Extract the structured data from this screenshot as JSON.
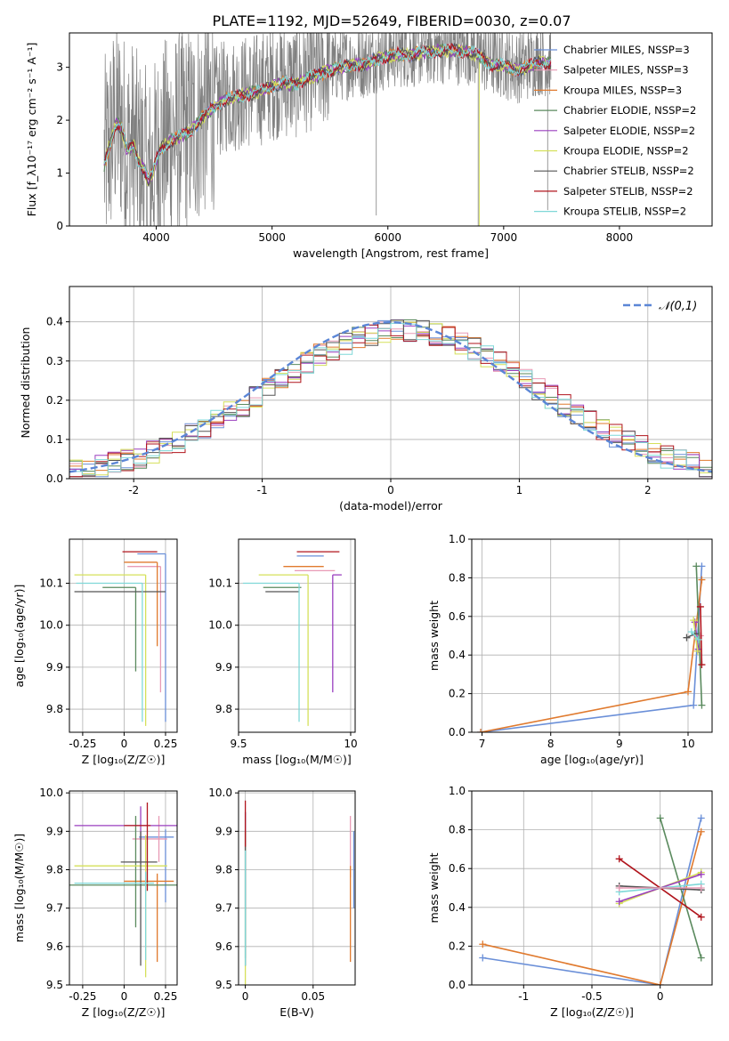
{
  "title": "PLATE=1192, MJD=52649, FIBERID=0030, z=0.07",
  "colors": {
    "chabrier_miles": "#6a8fd8",
    "salpeter_miles": "#e89ab5",
    "kroupa_miles": "#e07a2e",
    "chabrier_elodie": "#5a8a5e",
    "salpeter_elodie": "#9a3fbf",
    "kroupa_elodie": "#d5e05a",
    "chabrier_stelib": "#555555",
    "salpeter_stelib": "#b0141c",
    "kroupa_stelib": "#7fd8d8",
    "data": "#808080",
    "gaussian": "#5b86d6"
  },
  "chart_data": [
    {
      "id": "spectrum",
      "type": "line",
      "xlabel": "wavelength [Angstrom, rest frame]",
      "ylabel": "Flux [f_λ10⁻¹⁷ erg cm⁻² s⁻¹ A⁻¹]",
      "xlim": [
        3250,
        8800
      ],
      "ylim": [
        0,
        3.65
      ],
      "xticks": [
        4000,
        5000,
        6000,
        7000,
        8000
      ],
      "yticks": [
        0,
        1,
        2,
        3
      ],
      "grid": false,
      "legend_position": "right",
      "x_range_data": [
        3550,
        7410
      ],
      "continuum": [
        [
          3550,
          1.2
        ],
        [
          3600,
          1.6
        ],
        [
          3650,
          2.0
        ],
        [
          3700,
          1.9
        ],
        [
          3750,
          1.45
        ],
        [
          3800,
          1.6
        ],
        [
          3850,
          1.25
        ],
        [
          3900,
          1.1
        ],
        [
          3930,
          0.9
        ],
        [
          3970,
          1.05
        ],
        [
          4000,
          1.3
        ],
        [
          4050,
          1.55
        ],
        [
          4100,
          1.62
        ],
        [
          4200,
          1.75
        ],
        [
          4300,
          1.85
        ],
        [
          4400,
          2.1
        ],
        [
          4500,
          2.3
        ],
        [
          4600,
          2.45
        ],
        [
          4700,
          2.5
        ],
        [
          4800,
          2.55
        ],
        [
          4900,
          2.6
        ],
        [
          5000,
          2.7
        ],
        [
          5100,
          2.75
        ],
        [
          5200,
          2.72
        ],
        [
          5300,
          2.85
        ],
        [
          5400,
          2.9
        ],
        [
          5500,
          3.0
        ],
        [
          5600,
          3.05
        ],
        [
          5700,
          3.1
        ],
        [
          5800,
          3.1
        ],
        [
          5900,
          3.2
        ],
        [
          6000,
          3.25
        ],
        [
          6100,
          3.3
        ],
        [
          6200,
          3.3
        ],
        [
          6300,
          3.33
        ],
        [
          6400,
          3.35
        ],
        [
          6500,
          3.37
        ],
        [
          6600,
          3.35
        ],
        [
          6700,
          3.35
        ],
        [
          6800,
          3.25
        ],
        [
          6900,
          3.1
        ],
        [
          7000,
          3.1
        ],
        [
          7100,
          3.0
        ],
        [
          7200,
          3.05
        ],
        [
          7300,
          3.15
        ],
        [
          7410,
          3.12
        ]
      ],
      "models": [
        {
          "name": "Chabrier MILES, N_SSP=3",
          "color_key": "chabrier_miles"
        },
        {
          "name": "Salpeter MILES, N_SSP=3",
          "color_key": "salpeter_miles"
        },
        {
          "name": "Kroupa MILES, N_SSP=3",
          "color_key": "kroupa_miles"
        },
        {
          "name": "Chabrier ELODIE, N_SSP=2",
          "color_key": "chabrier_elodie"
        },
        {
          "name": "Salpeter ELODIE, N_SSP=2",
          "color_key": "salpeter_elodie"
        },
        {
          "name": "Kroupa ELODIE, N_SSP=2",
          "color_key": "kroupa_elodie"
        },
        {
          "name": "Chabrier STELIB, N_SSP=2",
          "color_key": "chabrier_stelib"
        },
        {
          "name": "Salpeter STELIB, N_SSP=2",
          "color_key": "salpeter_stelib"
        },
        {
          "name": "Kroupa STELIB, N_SSP=2",
          "color_key": "kroupa_stelib"
        }
      ]
    },
    {
      "id": "residuals",
      "type": "line",
      "xlabel": "(data-model)/error",
      "ylabel": "Normed distribution",
      "xlim": [
        -2.5,
        2.5
      ],
      "ylim": [
        0,
        0.49
      ],
      "xticks": [
        -2,
        -1,
        0,
        1,
        2
      ],
      "yticks": [
        0.0,
        0.1,
        0.2,
        0.3,
        0.4
      ],
      "grid": true,
      "legend_position": "top-right",
      "gaussian_label": "𝒩(0,1)",
      "bin_width": 0.1
    },
    {
      "id": "age_vs_Z",
      "type": "scatter",
      "xlabel": "Z [log₁₀(Z/Z☉)]",
      "ylabel": "age  [log₁₀(age/yr)]",
      "xlim": [
        -0.33,
        0.32
      ],
      "ylim": [
        9.745,
        10.205
      ],
      "xticks": [
        -0.25,
        0.0,
        0.25
      ],
      "yticks": [
        9.8,
        9.9,
        10.0,
        10.1
      ],
      "grid": true,
      "errorbars": [
        {
          "color_key": "chabrier_miles",
          "x": 0.25,
          "y": 10.17,
          "xerr": [
            0.17,
            0.0
          ],
          "yerr": [
            0.4,
            0.0
          ]
        },
        {
          "color_key": "salpeter_miles",
          "x": 0.22,
          "y": 10.14,
          "xerr": [
            0.2,
            0.0
          ],
          "yerr": [
            0.3,
            0.0
          ]
        },
        {
          "color_key": "kroupa_miles",
          "x": 0.2,
          "y": 10.15,
          "xerr": [
            0.2,
            0.0
          ],
          "yerr": [
            0.2,
            0.0
          ]
        },
        {
          "color_key": "chabrier_elodie",
          "x": 0.07,
          "y": 10.09,
          "xerr": [
            0.2,
            0.0
          ],
          "yerr": [
            0.2,
            0.0
          ]
        },
        {
          "color_key": "salpeter_elodie",
          "x": 0.24,
          "y": 10.12,
          "xerr": [
            0.0,
            0.0
          ],
          "yerr": [
            0.0,
            0.0
          ]
        },
        {
          "color_key": "kroupa_elodie",
          "x": 0.13,
          "y": 10.12,
          "xerr": [
            0.43,
            0.0
          ],
          "yerr": [
            0.36,
            0.0
          ]
        },
        {
          "color_key": "chabrier_stelib",
          "x": 0.13,
          "y": 10.08,
          "xerr": [
            0.43,
            0.12
          ],
          "yerr": [
            0.0,
            0.0
          ]
        },
        {
          "color_key": "salpeter_stelib",
          "x": 0.2,
          "y": 10.175,
          "xerr": [
            0.21,
            0.0
          ],
          "yerr": [
            0.0,
            0.0
          ]
        },
        {
          "color_key": "kroupa_stelib",
          "x": 0.11,
          "y": 10.1,
          "xerr": [
            0.4,
            0.0
          ],
          "yerr": [
            0.33,
            0.0
          ]
        }
      ]
    },
    {
      "id": "age_vs_mass",
      "type": "scatter",
      "xlabel": "mass [log₁₀(M/M☉)]",
      "ylabel": "",
      "xlim": [
        9.5,
        10.02
      ],
      "ylim": [
        9.745,
        10.205
      ],
      "xticks": [
        9.5,
        10.0
      ],
      "yticks": [
        9.8,
        9.9,
        10.0,
        10.1
      ],
      "grid": true,
      "errorbars": [
        {
          "color_key": "chabrier_miles",
          "x": 9.88,
          "y": 10.165,
          "xerr": [
            0.12,
            0.0
          ],
          "yerr": [
            0.0,
            0.0
          ]
        },
        {
          "color_key": "salpeter_miles",
          "x": 9.93,
          "y": 10.13,
          "xerr": [
            0.18,
            0.0
          ],
          "yerr": [
            0.0,
            0.0
          ]
        },
        {
          "color_key": "kroupa_miles",
          "x": 9.88,
          "y": 10.14,
          "xerr": [
            0.18,
            0.0
          ],
          "yerr": [
            0.0,
            0.0
          ]
        },
        {
          "color_key": "chabrier_elodie",
          "x": 9.78,
          "y": 10.09,
          "xerr": [
            0.17,
            0.0
          ],
          "yerr": [
            0.0,
            0.0
          ]
        },
        {
          "color_key": "salpeter_elodie",
          "x": 9.92,
          "y": 10.12,
          "xerr": [
            0.0,
            0.04
          ],
          "yerr": [
            0.28,
            0.0
          ]
        },
        {
          "color_key": "kroupa_elodie",
          "x": 9.81,
          "y": 10.12,
          "xerr": [
            0.22,
            0.0
          ],
          "yerr": [
            0.36,
            0.0
          ]
        },
        {
          "color_key": "chabrier_stelib",
          "x": 9.77,
          "y": 10.08,
          "xerr": [
            0.15,
            0.0
          ],
          "yerr": [
            0.0,
            0.0
          ]
        },
        {
          "color_key": "salpeter_stelib",
          "x": 9.91,
          "y": 10.175,
          "xerr": [
            0.15,
            0.04
          ],
          "yerr": [
            0.0,
            0.0
          ]
        },
        {
          "color_key": "kroupa_stelib",
          "x": 9.77,
          "y": 10.1,
          "xerr": [
            0.25,
            0.0
          ],
          "yerr": [
            0.33,
            0.0
          ]
        }
      ]
    },
    {
      "id": "mass_weight_vs_age",
      "type": "line",
      "xlabel": "age  [log₁₀(age/yr)]",
      "ylabel": "mass weight",
      "xlim": [
        6.85,
        10.35
      ],
      "ylim": [
        0.0,
        1.0
      ],
      "xticks": [
        7,
        8,
        9,
        10
      ],
      "yticks": [
        0.0,
        0.2,
        0.4,
        0.6,
        0.8,
        1.0
      ],
      "grid": true,
      "series": [
        {
          "color_key": "chabrier_miles",
          "x": [
            6.98,
            10.08,
            10.2
          ],
          "y": [
            0.0,
            0.14,
            0.86
          ]
        },
        {
          "color_key": "kroupa_miles",
          "x": [
            6.98,
            10.0,
            10.2
          ],
          "y": [
            0.0,
            0.21,
            0.79
          ]
        },
        {
          "color_key": "salpeter_miles",
          "x": [
            10.1,
            10.18
          ],
          "y": [
            0.5,
            0.5
          ]
        },
        {
          "color_key": "chabrier_elodie",
          "x": [
            10.12,
            10.2
          ],
          "y": [
            0.86,
            0.14
          ]
        },
        {
          "color_key": "salpeter_elodie",
          "x": [
            10.1,
            10.15
          ],
          "y": [
            0.57,
            0.43
          ]
        },
        {
          "color_key": "kroupa_elodie",
          "x": [
            10.08,
            10.14
          ],
          "y": [
            0.58,
            0.42
          ]
        },
        {
          "color_key": "chabrier_stelib",
          "x": [
            9.98,
            10.1
          ],
          "y": [
            0.49,
            0.51
          ]
        },
        {
          "color_key": "salpeter_stelib",
          "x": [
            10.18,
            10.2
          ],
          "y": [
            0.65,
            0.35
          ]
        },
        {
          "color_key": "kroupa_stelib",
          "x": [
            10.05,
            10.15
          ],
          "y": [
            0.52,
            0.48
          ]
        }
      ]
    },
    {
      "id": "mass_vs_Z",
      "type": "scatter",
      "xlabel": "Z [log₁₀(Z/Z☉)]",
      "ylabel": "mass [log₁₀(M/M☉)]",
      "xlim": [
        -0.33,
        0.32
      ],
      "ylim": [
        9.5,
        10.005
      ],
      "xticks": [
        -0.25,
        0.0,
        0.25
      ],
      "yticks": [
        9.5,
        9.6,
        9.7,
        9.8,
        9.9,
        10.0
      ],
      "grid": true,
      "errorbars": [
        {
          "color_key": "chabrier_miles",
          "x": 0.25,
          "y": 9.885,
          "xerr": [
            0.16,
            0.05
          ],
          "yerr": [
            0.17,
            0.02
          ]
        },
        {
          "color_key": "salpeter_miles",
          "x": 0.21,
          "y": 9.88,
          "xerr": [
            0.16,
            0.05
          ],
          "yerr": [
            0.06,
            0.06
          ]
        },
        {
          "color_key": "kroupa_miles",
          "x": 0.2,
          "y": 9.77,
          "xerr": [
            0.2,
            0.1
          ],
          "yerr": [
            0.21,
            0.02
          ]
        },
        {
          "color_key": "chabrier_elodie",
          "x": 0.07,
          "y": 9.76,
          "xerr": [
            0.4,
            0.25
          ],
          "yerr": [
            0.11,
            0.18
          ]
        },
        {
          "color_key": "salpeter_elodie",
          "x": 0.1,
          "y": 9.915,
          "xerr": [
            0.4,
            0.22
          ],
          "yerr": [
            0.1,
            0.05
          ]
        },
        {
          "color_key": "kroupa_elodie",
          "x": 0.13,
          "y": 9.81,
          "xerr": [
            0.43,
            0.13
          ],
          "yerr": [
            0.29,
            0.08
          ]
        },
        {
          "color_key": "chabrier_stelib",
          "x": 0.1,
          "y": 9.82,
          "xerr": [
            0.12,
            0.1
          ],
          "yerr": [
            0.27,
            0.08
          ]
        },
        {
          "color_key": "salpeter_stelib",
          "x": 0.14,
          "y": 9.915,
          "xerr": [
            0.14,
            0.02
          ],
          "yerr": [
            0.17,
            0.06
          ]
        },
        {
          "color_key": "kroupa_stelib",
          "x": 0.13,
          "y": 9.765,
          "xerr": [
            0.43,
            0.05
          ],
          "yerr": [
            0.2,
            0.03
          ]
        }
      ]
    },
    {
      "id": "mass_vs_ebv",
      "type": "scatter",
      "xlabel": "E(B-V)",
      "ylabel": "",
      "xlim": [
        -0.005,
        0.081
      ],
      "ylim": [
        9.5,
        10.005
      ],
      "xticks": [
        0.0,
        0.05
      ],
      "yticks": [
        9.5,
        9.6,
        9.7,
        9.8,
        9.9,
        10.0
      ],
      "grid": true,
      "errorbars": [
        {
          "color_key": "chabrier_miles",
          "x": 0.08,
          "y": 9.83,
          "xerr": [
            0,
            0
          ],
          "yerr": [
            0.13,
            0.07
          ]
        },
        {
          "color_key": "salpeter_miles",
          "x": 0.0775,
          "y": 9.88,
          "xerr": [
            0,
            0
          ],
          "yerr": [
            0.1,
            0.06
          ]
        },
        {
          "color_key": "kroupa_miles",
          "x": 0.0775,
          "y": 9.7,
          "xerr": [
            0,
            0
          ],
          "yerr": [
            0.14,
            0.11
          ]
        },
        {
          "color_key": "chabrier_elodie",
          "x": 0.0,
          "y": 9.77,
          "xerr": [
            0,
            0
          ],
          "yerr": [
            0.2,
            0.18
          ]
        },
        {
          "color_key": "salpeter_elodie",
          "x": 0.0,
          "y": 9.9,
          "xerr": [
            0,
            0
          ],
          "yerr": [
            0.2,
            0.05
          ]
        },
        {
          "color_key": "kroupa_elodie",
          "x": 0.0,
          "y": 9.8,
          "xerr": [
            0,
            0
          ],
          "yerr": [
            0.3,
            0.1
          ]
        },
        {
          "color_key": "chabrier_stelib",
          "x": 0.0,
          "y": 9.82,
          "xerr": [
            0,
            0
          ],
          "yerr": [
            0.27,
            0.08
          ]
        },
        {
          "color_key": "salpeter_stelib",
          "x": 0.0,
          "y": 9.92,
          "xerr": [
            0,
            0
          ],
          "yerr": [
            0.06,
            0.06
          ]
        },
        {
          "color_key": "kroupa_stelib",
          "x": 0.0,
          "y": 9.75,
          "xerr": [
            0,
            0
          ],
          "yerr": [
            0.2,
            0.1
          ]
        }
      ]
    },
    {
      "id": "mass_weight_vs_Z",
      "type": "line",
      "xlabel": "Z [log₁₀(Z/Z☉)]",
      "ylabel": "mass weight",
      "xlim": [
        -1.38,
        0.38
      ],
      "ylim": [
        0.0,
        1.0
      ],
      "xticks": [
        -1.0,
        -0.5,
        0.0
      ],
      "yticks": [
        0.0,
        0.2,
        0.4,
        0.6,
        0.8,
        1.0
      ],
      "grid": true,
      "series": [
        {
          "color_key": "chabrier_miles",
          "x": [
            -1.3,
            0.0,
            0.3
          ],
          "y": [
            0.14,
            0.0,
            0.86
          ]
        },
        {
          "color_key": "kroupa_miles",
          "x": [
            -1.3,
            0.0,
            0.3
          ],
          "y": [
            0.21,
            0.0,
            0.79
          ]
        },
        {
          "color_key": "chabrier_elodie",
          "x": [
            0.0,
            0.3
          ],
          "y": [
            0.86,
            0.14
          ]
        },
        {
          "color_key": "kroupa_elodie",
          "x": [
            -0.3,
            0.3
          ],
          "y": [
            0.42,
            0.58
          ]
        },
        {
          "color_key": "salpeter_elodie",
          "x": [
            -0.3,
            0.3
          ],
          "y": [
            0.43,
            0.57
          ]
        },
        {
          "color_key": "chabrier_stelib",
          "x": [
            -0.3,
            0.3
          ],
          "y": [
            0.51,
            0.49
          ]
        },
        {
          "color_key": "salpeter_stelib",
          "x": [
            -0.3,
            0.3
          ],
          "y": [
            0.65,
            0.35
          ]
        },
        {
          "color_key": "kroupa_stelib",
          "x": [
            -0.3,
            0.3
          ],
          "y": [
            0.48,
            0.52
          ]
        },
        {
          "color_key": "salpeter_miles",
          "x": [
            -0.3,
            0.3
          ],
          "y": [
            0.5,
            0.5
          ]
        }
      ]
    }
  ]
}
